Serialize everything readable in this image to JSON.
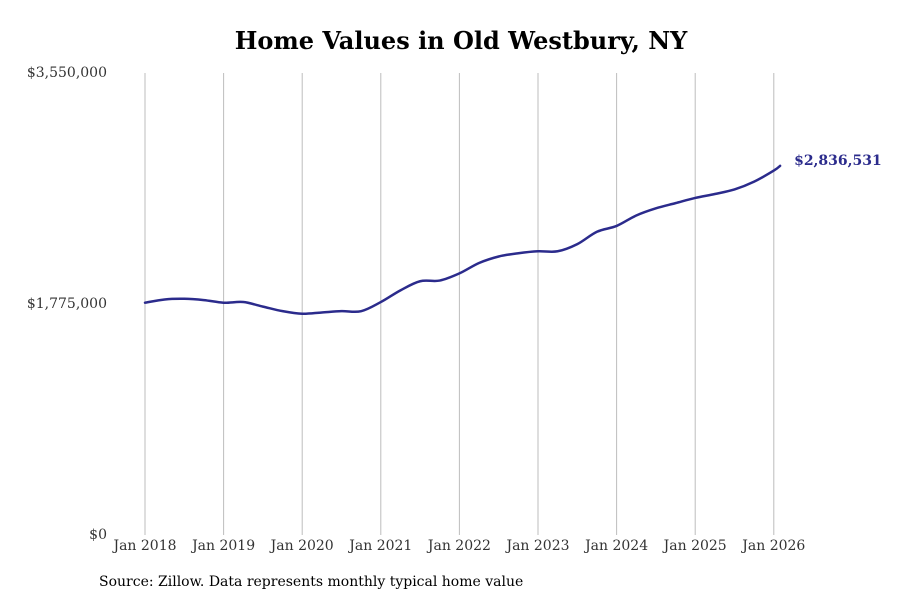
{
  "chart_data": {
    "type": "line",
    "title": "Home Values in Old Westbury, NY",
    "xlabel": "",
    "ylabel": "",
    "ylim": [
      0,
      3550000
    ],
    "y_ticks": [
      0,
      1775000,
      3550000
    ],
    "y_tick_labels": [
      "$0",
      "$1,775,000",
      "$3,550,000"
    ],
    "x_tick_labels": [
      "Jan 2018",
      "Jan 2019",
      "Jan 2020",
      "Jan 2021",
      "Jan 2022",
      "Jan 2023",
      "Jan 2024",
      "Jan 2025",
      "Jan 2026"
    ],
    "x_tick_years": [
      2018,
      2019,
      2020,
      2021,
      2022,
      2023,
      2024,
      2025,
      2026
    ],
    "grid": "vertical",
    "line_color": "#2b2b8c",
    "series": [
      {
        "name": "Typical home value",
        "x": [
          2018.0,
          2018.25,
          2018.5,
          2018.75,
          2019.0,
          2019.25,
          2019.5,
          2019.75,
          2020.0,
          2020.25,
          2020.5,
          2020.75,
          2021.0,
          2021.25,
          2021.5,
          2021.75,
          2022.0,
          2022.25,
          2022.5,
          2022.75,
          2023.0,
          2023.25,
          2023.5,
          2023.75,
          2024.0,
          2024.25,
          2024.5,
          2024.75,
          2025.0,
          2025.25,
          2025.5,
          2025.75,
          2026.0,
          2026.08
        ],
        "values": [
          1785000,
          1810000,
          1815000,
          1805000,
          1785000,
          1790000,
          1755000,
          1720000,
          1700000,
          1710000,
          1720000,
          1720000,
          1790000,
          1880000,
          1950000,
          1955000,
          2010000,
          2090000,
          2140000,
          2165000,
          2180000,
          2180000,
          2235000,
          2330000,
          2375000,
          2455000,
          2510000,
          2550000,
          2590000,
          2620000,
          2655000,
          2715000,
          2800000,
          2836531
        ]
      }
    ],
    "end_label": "$2,836,531"
  },
  "source_note": "Source: Zillow. Data represents monthly typical home value"
}
